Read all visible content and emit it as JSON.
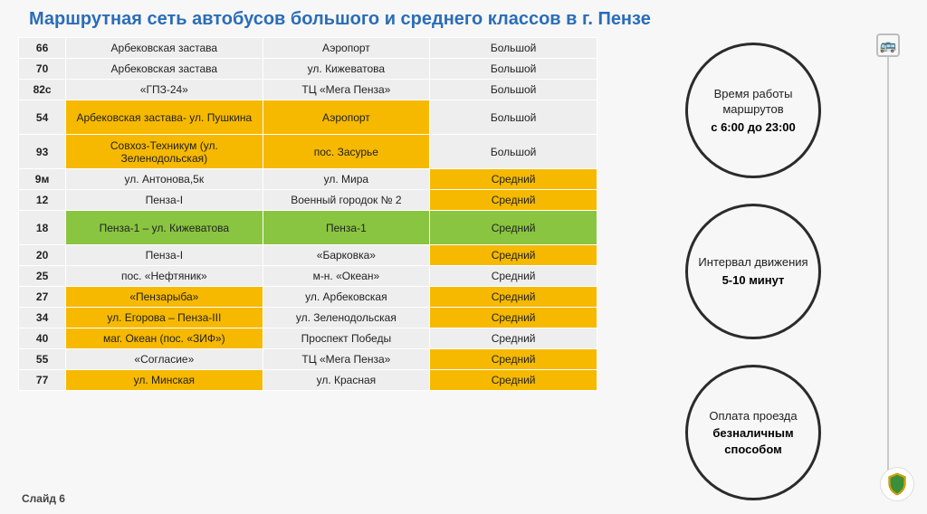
{
  "title": "Маршрутная сеть автобусов большого и среднего классов в г. Пензе",
  "footer": "Слайд 6",
  "colors": {
    "title": "#2a6db8",
    "highlight_yellow": "#f6b900",
    "highlight_green": "#89c540",
    "cell_default": "#eeeeee",
    "circle_border": "#2b2b2b"
  },
  "table": {
    "rows": [
      {
        "num": "66",
        "c1": "Арбековская застава",
        "c2": "Аэропорт",
        "c3": "Большой",
        "h": [
          "",
          "",
          "",
          ""
        ]
      },
      {
        "num": "70",
        "c1": "Арбековская застава",
        "c2": "ул. Кижеватова",
        "c3": "Большой",
        "h": [
          "",
          "",
          "",
          ""
        ]
      },
      {
        "num": "82с",
        "c1": "«ГПЗ-24»",
        "c2": "ТЦ «Мега Пенза»",
        "c3": "Большой",
        "h": [
          "",
          "",
          "",
          ""
        ]
      },
      {
        "num": "54",
        "c1": "Арбековская застава- ул. Пушкина",
        "c2": "Аэропорт",
        "c3": "Большой",
        "h": [
          "",
          "y",
          "y",
          ""
        ],
        "tall": true
      },
      {
        "num": "93",
        "c1": "Совхоз-Техникум (ул. Зеленодольская)",
        "c2": "пос. Засурье",
        "c3": "Большой",
        "h": [
          "",
          "y",
          "y",
          ""
        ],
        "tall": true
      },
      {
        "num": "9м",
        "c1": "ул. Антонова,5к",
        "c2": "ул. Мира",
        "c3": "Средний",
        "h": [
          "",
          "",
          "",
          "y"
        ]
      },
      {
        "num": "12",
        "c1": "Пенза-I",
        "c2": "Военный городок № 2",
        "c3": "Средний",
        "h": [
          "",
          "",
          "",
          "y"
        ]
      },
      {
        "num": "18",
        "c1": "Пенза-1 – ул. Кижеватова",
        "c2": "Пенза-1",
        "c3": "Средний",
        "h": [
          "",
          "g",
          "g",
          "g"
        ],
        "tall": true
      },
      {
        "num": "20",
        "c1": "Пенза-I",
        "c2": "«Барковка»",
        "c3": "Средний",
        "h": [
          "",
          "",
          "",
          "y"
        ]
      },
      {
        "num": "25",
        "c1": "пос. «Нефтяник»",
        "c2": "м-н. «Океан»",
        "c3": "Средний",
        "h": [
          "",
          "",
          "",
          ""
        ]
      },
      {
        "num": "27",
        "c1": "«Пензарыба»",
        "c2": "ул. Арбековская",
        "c3": "Средний",
        "h": [
          "",
          "y",
          "",
          "y"
        ]
      },
      {
        "num": "34",
        "c1": "ул. Егорова – Пенза-III",
        "c2": "ул. Зеленодольская",
        "c3": "Средний",
        "h": [
          "",
          "y",
          "",
          "y"
        ]
      },
      {
        "num": "40",
        "c1": "маг. Океан (пос. «ЗИФ»)",
        "c2": "Проспект Победы",
        "c3": "Средний",
        "h": [
          "",
          "y",
          "",
          ""
        ]
      },
      {
        "num": "55",
        "c1": "«Согласие»",
        "c2": "ТЦ «Мега Пенза»",
        "c3": "Средний",
        "h": [
          "",
          "",
          "",
          "y"
        ]
      },
      {
        "num": "77",
        "c1": "ул. Минская",
        "c2": "ул. Красная",
        "c3": "Средний",
        "h": [
          "",
          "y",
          "",
          "y"
        ]
      }
    ]
  },
  "info": {
    "c1": {
      "label": "Время работы маршрутов",
      "value": "с 6:00 до 23:00"
    },
    "c2": {
      "label": "Интервал движения",
      "value": "5-10 минут"
    },
    "c3": {
      "label": "Оплата проезда",
      "value": "безналичным способом"
    }
  }
}
